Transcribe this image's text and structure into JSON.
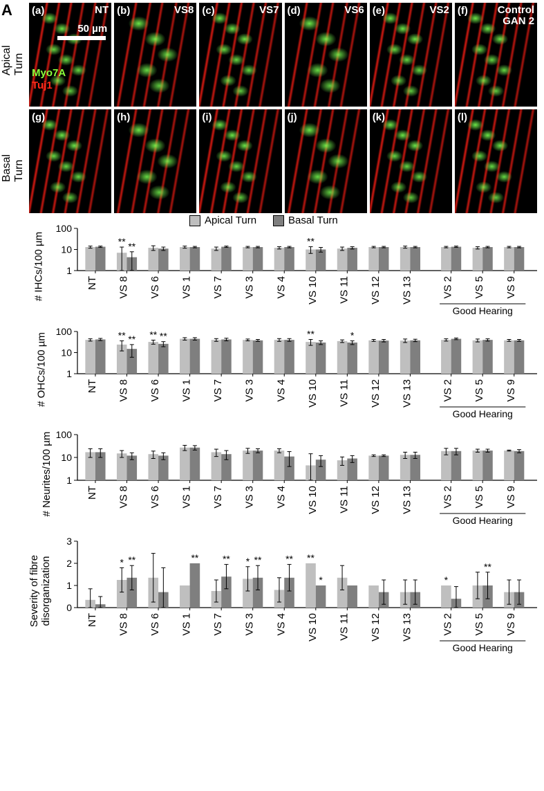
{
  "panelA": {
    "section": "A",
    "row1_label": "Apical Turn",
    "row2_label": "Basal Turn",
    "markers": {
      "myo": "Myo7A",
      "tuj": "Tuj1"
    },
    "marker_colors": {
      "myo": "#8cff3c",
      "tuj": "#ff2a1a"
    },
    "scalebar": "50 µm",
    "columns": [
      {
        "top_letter": "(a)",
        "top_name": "NT",
        "bot_letter": "(g)",
        "dense": true
      },
      {
        "top_letter": "(b)",
        "top_name": "VS8",
        "bot_letter": "(h)",
        "dense": false
      },
      {
        "top_letter": "(c)",
        "top_name": "VS7",
        "bot_letter": "(i)",
        "dense": true
      },
      {
        "top_letter": "(d)",
        "top_name": "VS6",
        "bot_letter": "(j)",
        "dense": false
      },
      {
        "top_letter": "(e)",
        "top_name": "VS2",
        "bot_letter": "(k)",
        "dense": true
      },
      {
        "top_letter": "(f)",
        "top_name": "Control\nGAN 2",
        "bot_letter": "(l)",
        "dense": true
      }
    ]
  },
  "categories": [
    "NT",
    "VS 8",
    "VS 6",
    "VS 1",
    "VS 7",
    "VS 3",
    "VS 4",
    "VS 10",
    "VS 11",
    "VS 12",
    "VS 13",
    "VS 2",
    "VS 5",
    "VS 9"
  ],
  "good_hearing_label": "Good Hearing",
  "good_hearing_ids": [
    "VS 2",
    "VS 5",
    "VS 9"
  ],
  "colors": {
    "apical": "#bfbfbf",
    "basal": "#7f7f7f",
    "axis": "#000000",
    "errbar": "#000000"
  },
  "legend": {
    "apical": "Apical Turn",
    "basal": "Basal Turn"
  },
  "chartB": {
    "section": "B",
    "ylabel": "# IHCs/100 µm",
    "yscale": "log",
    "ymin": 1,
    "ymax": 100,
    "yticks": [
      1,
      10,
      100
    ],
    "apical": [
      13,
      7,
      12,
      13,
      11,
      13,
      12,
      10,
      11,
      13,
      13,
      13,
      12,
      13
    ],
    "apical_err": [
      1.5,
      6,
      3,
      1.5,
      2,
      1,
      1.5,
      3.5,
      2,
      1,
      1.5,
      1,
      1.5,
      1
    ],
    "basal": [
      13.5,
      4.3,
      11,
      13,
      13.5,
      13,
      13,
      10,
      12,
      13,
      13,
      13.5,
      13,
      13
    ],
    "basal_err": [
      1,
      3.5,
      2,
      1,
      1,
      1,
      1,
      2.5,
      1.5,
      1,
      1,
      1,
      1,
      1
    ],
    "sig_apical": [
      "",
      "**",
      "",
      "",
      "",
      "",
      "",
      "**",
      "",
      "",
      "",
      "",
      "",
      ""
    ],
    "sig_basal": [
      "",
      "**",
      "",
      "",
      "",
      "",
      "",
      "",
      "",
      "",
      "",
      "",
      "",
      ""
    ]
  },
  "chartC": {
    "section": "C",
    "ylabel": "# OHCs/100 µm",
    "yscale": "log",
    "ymin": 1,
    "ymax": 100,
    "yticks": [
      1,
      10,
      100
    ],
    "apical": [
      40,
      24,
      32,
      45,
      40,
      40,
      40,
      32,
      35,
      38,
      37,
      40,
      38,
      38
    ],
    "apical_err": [
      5,
      12,
      7,
      6,
      6,
      4,
      6,
      10,
      5,
      4,
      7,
      5,
      6,
      4
    ],
    "basal": [
      42,
      15,
      26,
      45,
      42,
      38,
      40,
      30,
      30,
      37,
      38,
      45,
      40,
      38
    ],
    "basal_err": [
      5,
      9,
      7,
      6,
      6,
      4,
      6,
      6,
      6,
      5,
      5,
      4,
      5,
      4
    ],
    "sig_apical": [
      "",
      "**",
      "**",
      "",
      "",
      "",
      "",
      "**",
      "",
      "",
      "",
      "",
      "",
      ""
    ],
    "sig_basal": [
      "",
      "**",
      "**",
      "",
      "",
      "",
      "",
      "",
      "*",
      "",
      "",
      "",
      "",
      ""
    ]
  },
  "chartD": {
    "section": "D",
    "ylabel": "# Neurites/100 µm",
    "yscale": "log",
    "ymin": 1,
    "ymax": 100,
    "yticks": [
      1,
      10,
      100
    ],
    "apical": [
      17,
      15,
      14,
      27,
      17,
      20,
      20,
      4.5,
      7.5,
      12,
      13,
      19,
      20,
      20
    ],
    "apical_err": [
      7,
      5,
      5,
      7,
      6,
      5,
      4,
      10,
      3,
      1,
      4,
      6,
      3,
      1
    ],
    "basal": [
      17,
      12,
      12,
      27,
      14,
      20,
      11,
      8,
      9,
      12,
      13,
      19,
      20,
      19
    ],
    "basal_err": [
      7,
      4,
      4,
      6,
      6,
      4,
      7,
      4,
      3,
      1,
      4,
      6,
      3,
      3
    ],
    "sig_apical": [
      "",
      "",
      "",
      "",
      "",
      "",
      "",
      "",
      "",
      "",
      "",
      "",
      "",
      ""
    ],
    "sig_basal": [
      "",
      "",
      "",
      "",
      "",
      "",
      "",
      "",
      "",
      "",
      "",
      "",
      "",
      ""
    ]
  },
  "chartE": {
    "section": "E",
    "ylabel": "Severity of fibre\ndisorganization",
    "yscale": "linear",
    "ymin": 0,
    "ymax": 3,
    "yticks": [
      0,
      1,
      2,
      3
    ],
    "apical": [
      0.35,
      1.25,
      1.35,
      1.0,
      0.75,
      1.3,
      0.8,
      2.0,
      1.35,
      1.0,
      0.7,
      1.0,
      1.0,
      0.7
    ],
    "apical_err": [
      0.5,
      0.55,
      1.1,
      0.0,
      0.5,
      0.55,
      0.55,
      0.0,
      0.55,
      0.0,
      0.55,
      0.0,
      0.6,
      0.55
    ],
    "basal": [
      0.15,
      1.35,
      0.7,
      2.0,
      1.4,
      1.35,
      1.35,
      1.0,
      1.0,
      0.7,
      0.7,
      0.4,
      1.0,
      0.7
    ],
    "basal_err": [
      0.35,
      0.55,
      1.1,
      0.0,
      0.55,
      0.55,
      0.6,
      0.0,
      0.0,
      0.55,
      0.55,
      0.55,
      0.6,
      0.55
    ],
    "sig_apical": [
      "",
      "*",
      "",
      "",
      "",
      "*",
      "",
      "**",
      "",
      "",
      "",
      "*",
      "",
      ""
    ],
    "sig_basal": [
      "",
      "**",
      "",
      "**",
      "**",
      "**",
      "**",
      "*",
      "",
      "",
      "",
      "",
      "**",
      ""
    ]
  }
}
